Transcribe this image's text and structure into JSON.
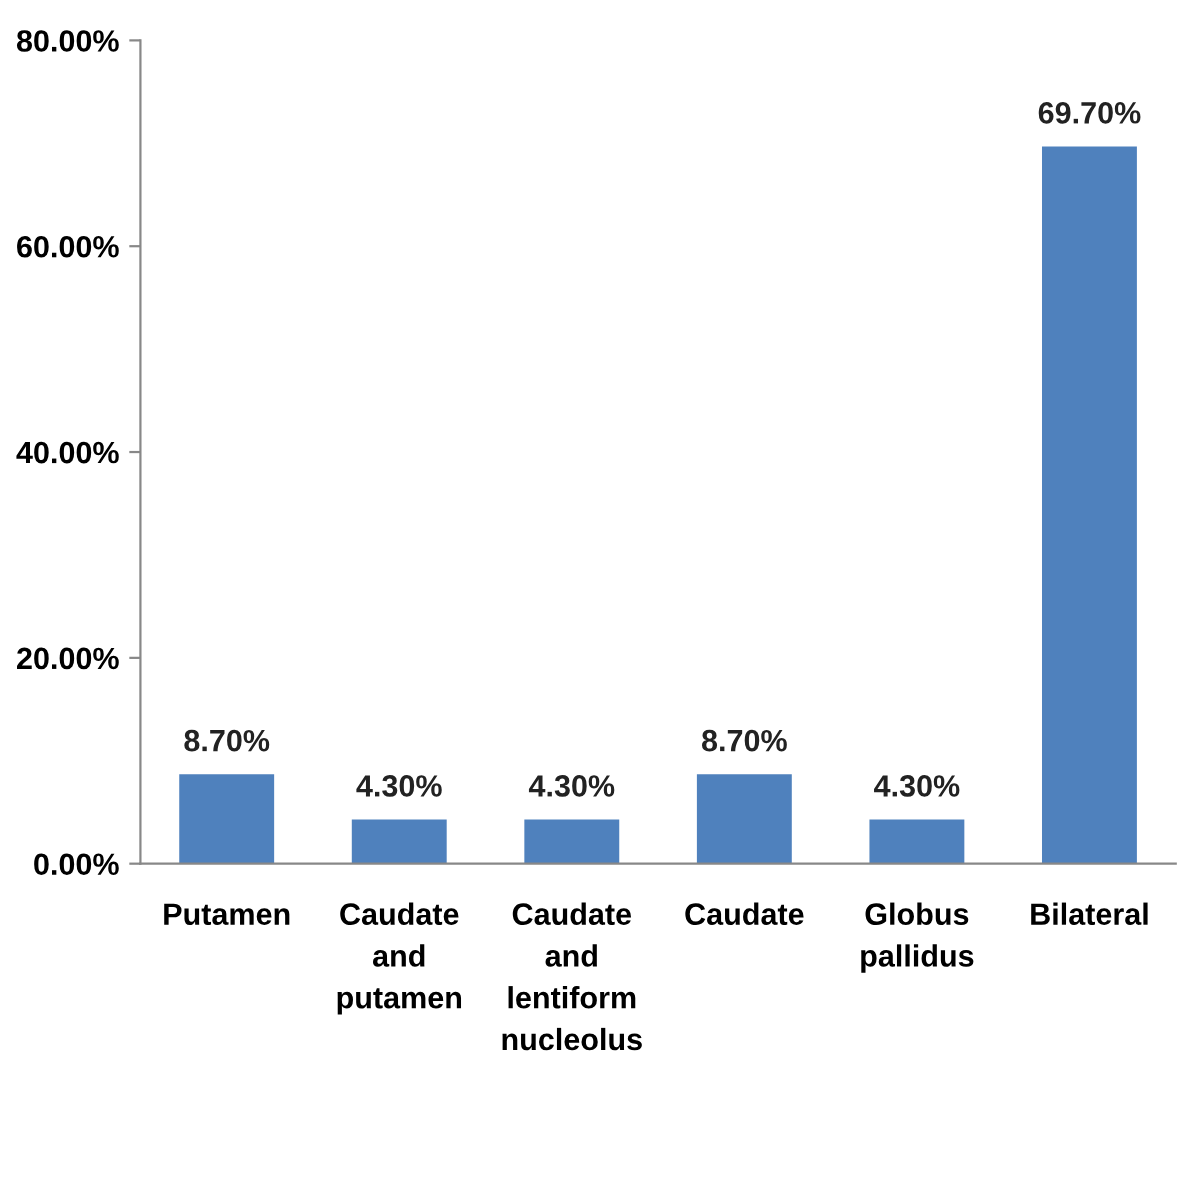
{
  "chart_data": {
    "type": "bar",
    "categories": [
      "Putamen",
      "Caudate and putamen",
      "Caudate and lentiform nucleolus",
      "Caudate",
      "Globus pallidus",
      "Bilateral"
    ],
    "values": [
      8.7,
      4.3,
      4.3,
      8.7,
      4.3,
      69.7
    ],
    "value_labels": [
      "8.70%",
      "4.30%",
      "4.30%",
      "8.70%",
      "4.30%",
      "69.70%"
    ],
    "color": "#4f81bd",
    "ylim": [
      0,
      80
    ],
    "yticks": [
      {
        "value": 0,
        "label": "0.00%"
      },
      {
        "value": 20,
        "label": "20.00%"
      },
      {
        "value": 40,
        "label": "40.00%"
      },
      {
        "value": 60,
        "label": "60.00%"
      },
      {
        "value": 80,
        "label": "80.00%"
      }
    ],
    "grid": false
  }
}
